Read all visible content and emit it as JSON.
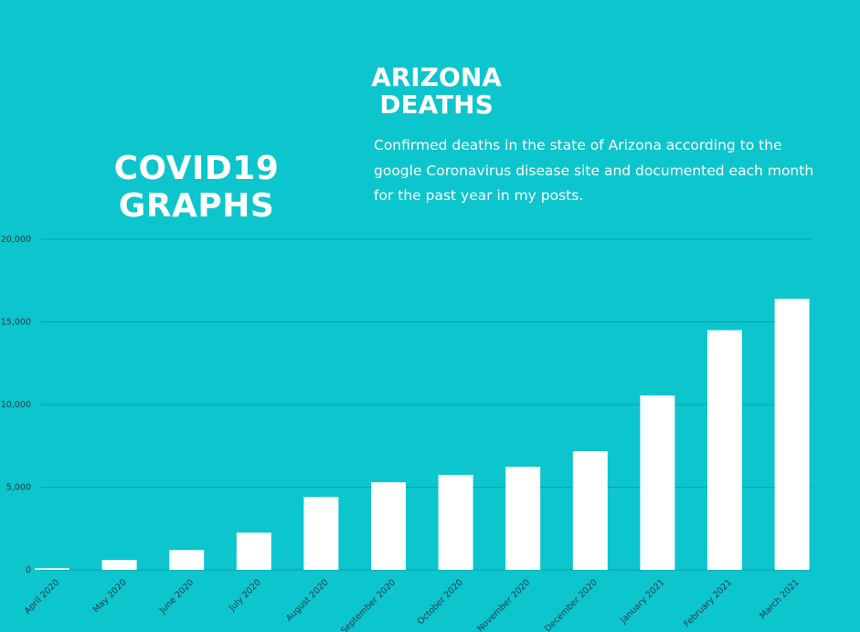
{
  "chart_data": {
    "type": "bar",
    "heading": "COVID19 GRAPHS",
    "title": "ARIZONA DEATHS",
    "subtitle": "Confirmed deaths in the state of Arizona according to the google Coronavirus disease site and documented each month for the past year in my posts.",
    "categories": [
      "April 2020",
      "May 2020",
      "June 2020",
      "July 2020",
      "August 2020",
      "September 2020",
      "October 2020",
      "November 2020",
      "December 2020",
      "January 2021",
      "February 2021",
      "March 2021"
    ],
    "values": [
      100,
      600,
      1200,
      2250,
      4420,
      5300,
      5750,
      6240,
      7180,
      10550,
      14500,
      16400
    ],
    "color": "#ffffff",
    "ylim": [
      0,
      20000
    ],
    "yticks": [
      0,
      {
        "value": 5000,
        "label": "5,000"
      },
      {
        "value": 10000,
        "label": "10,000"
      },
      {
        "value": 15000,
        "label": "15,000"
      },
      {
        "value": 20000,
        "label": "20,000"
      }
    ],
    "grid": true
  }
}
